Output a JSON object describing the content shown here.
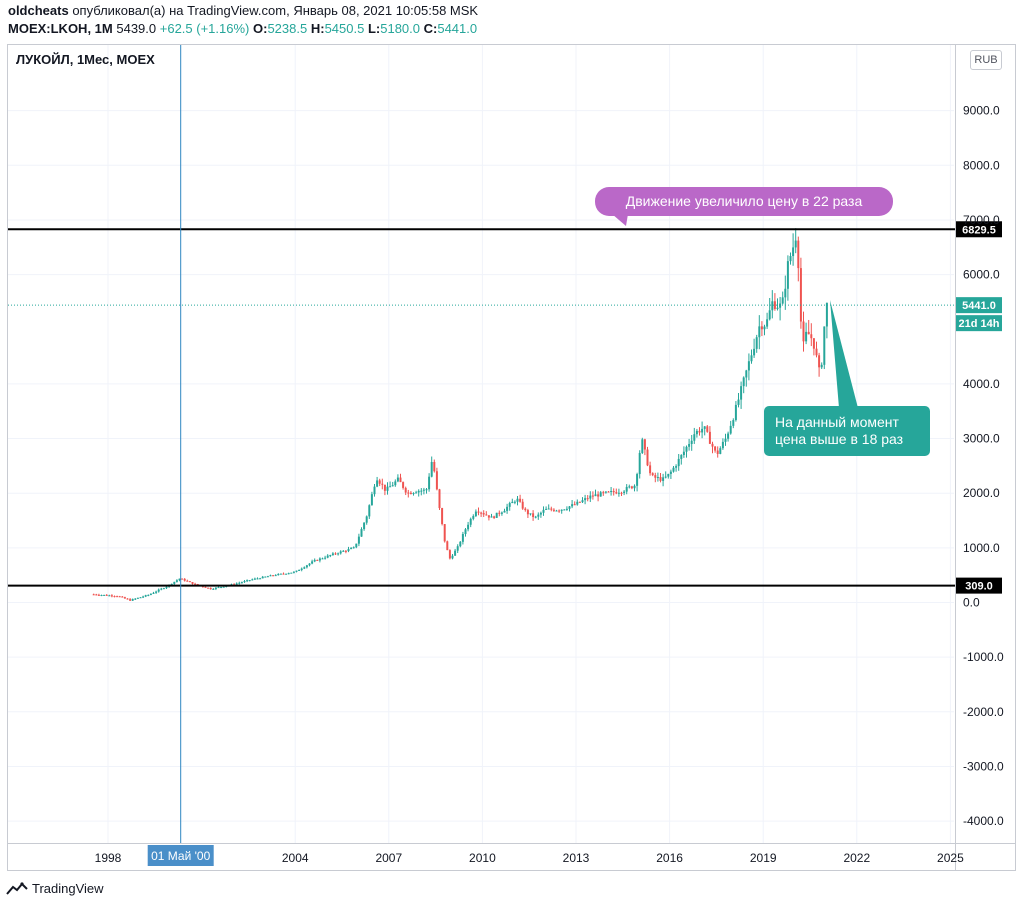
{
  "header": {
    "author": "oldcheats",
    "published": "опубликовал(а) на TradingView.com, Январь 08, 2021 10:05:58 MSK",
    "symbol": "MOEX:LKOH, 1M",
    "last": "5439.0",
    "change": "+62.5 (+1.16%)",
    "o_label": "O:",
    "o": "5238.5",
    "h_label": "H:",
    "h": "5450.5",
    "l_label": "L:",
    "l": "5180.0",
    "c_label": "C:",
    "c": "5441.0"
  },
  "chart_title": "ЛУКОЙЛ, 1Мес, MOEX",
  "currency_badge": "RUB",
  "footer": {
    "brand": "TradingView"
  },
  "colors": {
    "up": "#26a69a",
    "down": "#ef5350",
    "level_line": "#000000",
    "crosshair": "#2e86c1",
    "purple_callout": "#ba68c8",
    "teal_callout": "#26a69a"
  },
  "chart_data": {
    "type": "candlestick",
    "title": "ЛУКОЙЛ, 1Мес, MOEX",
    "ylim": [
      -4500,
      10200
    ],
    "xlim": [
      1995.3,
      2025.6
    ],
    "y_ticks": [
      "9000.0",
      "8000.0",
      "7000.0",
      "6000.0",
      "4000.0",
      "3000.0",
      "2000.0",
      "1000.0",
      "0.0",
      "-1000.0",
      "-2000.0",
      "-3000.0",
      "-4000.0"
    ],
    "x_ticks": [
      "1998",
      "2004",
      "2007",
      "2010",
      "2013",
      "2016",
      "2019",
      "2022",
      "2025"
    ],
    "crosshair": {
      "x": 2000.33,
      "label": "01 Май '00"
    },
    "horizontal_levels": [
      {
        "value": 6829.5,
        "label": "6829.5"
      },
      {
        "value": 309.0,
        "label": "309.0"
      }
    ],
    "last_price": {
      "value": 5441.0,
      "label": "5441.0",
      "countdown": "21d 14h"
    },
    "price_path": [
      [
        1997.5,
        150
      ],
      [
        1998.3,
        120
      ],
      [
        1998.7,
        40
      ],
      [
        1999.3,
        140
      ],
      [
        1999.9,
        300
      ],
      [
        2000.3,
        440
      ],
      [
        2000.8,
        330
      ],
      [
        2001.3,
        250
      ],
      [
        2002.0,
        330
      ],
      [
        2002.6,
        420
      ],
      [
        2003.3,
        500
      ],
      [
        2004.0,
        560
      ],
      [
        2004.6,
        760
      ],
      [
        2005.3,
        900
      ],
      [
        2005.9,
        1000
      ],
      [
        2006.3,
        1600
      ],
      [
        2006.6,
        2300
      ],
      [
        2006.9,
        2050
      ],
      [
        2007.3,
        2250
      ],
      [
        2007.6,
        2000
      ],
      [
        2007.9,
        2050
      ],
      [
        2008.2,
        2050
      ],
      [
        2008.4,
        2650
      ],
      [
        2008.6,
        1800
      ],
      [
        2008.8,
        1100
      ],
      [
        2008.95,
        800
      ],
      [
        2009.2,
        1000
      ],
      [
        2009.5,
        1400
      ],
      [
        2009.8,
        1700
      ],
      [
        2010.3,
        1550
      ],
      [
        2010.7,
        1700
      ],
      [
        2011.1,
        1900
      ],
      [
        2011.4,
        1650
      ],
      [
        2011.7,
        1550
      ],
      [
        2012.0,
        1700
      ],
      [
        2012.5,
        1700
      ],
      [
        2013.0,
        1800
      ],
      [
        2013.5,
        1950
      ],
      [
        2014.0,
        2000
      ],
      [
        2014.5,
        2050
      ],
      [
        2014.9,
        2150
      ],
      [
        2015.1,
        3000
      ],
      [
        2015.4,
        2300
      ],
      [
        2015.8,
        2250
      ],
      [
        2016.0,
        2350
      ],
      [
        2016.4,
        2700
      ],
      [
        2016.8,
        3100
      ],
      [
        2017.1,
        3200
      ],
      [
        2017.5,
        2700
      ],
      [
        2017.8,
        3000
      ],
      [
        2018.1,
        3500
      ],
      [
        2018.5,
        4300
      ],
      [
        2018.9,
        5100
      ],
      [
        2019.1,
        5100
      ],
      [
        2019.3,
        5500
      ],
      [
        2019.6,
        5400
      ],
      [
        2019.8,
        6200
      ],
      [
        2020.0,
        6600
      ],
      [
        2020.08,
        6829.5
      ],
      [
        2020.25,
        4600
      ],
      [
        2020.4,
        4950
      ],
      [
        2020.6,
        4800
      ],
      [
        2020.8,
        4200
      ],
      [
        2020.9,
        4500
      ],
      [
        2021.0,
        5441
      ]
    ]
  },
  "annotations": {
    "top_callout": "Движение увеличило цену в 22 раза",
    "bottom_callout_line1": "На данный момент",
    "bottom_callout_line2": "цена выше в 18 раз"
  }
}
